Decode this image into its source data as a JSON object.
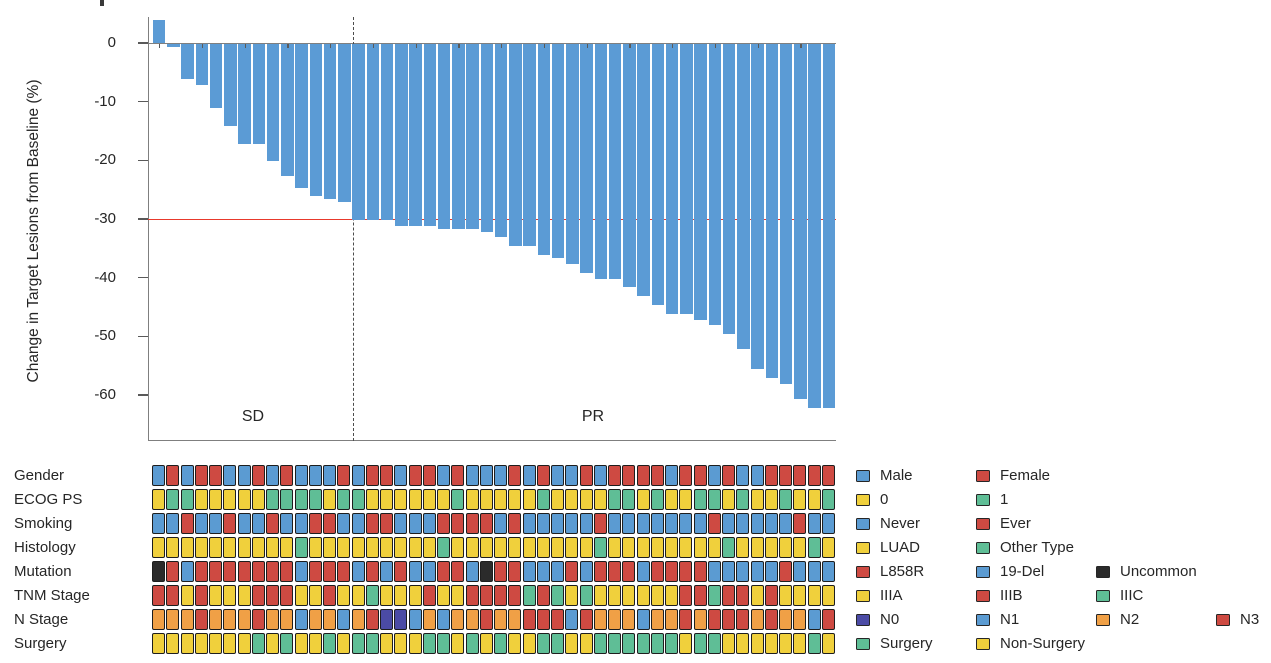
{
  "chart_data": {
    "type": "bar",
    "subtype": "waterfall",
    "title": "",
    "xlabel": "",
    "ylabel": "Change in Target Lesions from Baseline (%)",
    "yticks": [
      0,
      -10,
      -20,
      -30,
      -40,
      -50,
      -60
    ],
    "ylim": [
      -68,
      4.8
    ],
    "grid": false,
    "bar_color": "#5B9BD5",
    "threshold_line": {
      "value": -30,
      "color": "#E8392C"
    },
    "group_separator_after_bar": 14,
    "groups": [
      {
        "label": "SD",
        "bar_count": 14
      },
      {
        "label": "PR",
        "bar_count": 34
      }
    ],
    "zero_line_tick_interval": 3,
    "values": [
      4,
      -0.5,
      -6,
      -7,
      -11,
      -14,
      -17,
      -17,
      -20,
      -22.5,
      -24.5,
      -26,
      -26.5,
      -27,
      -30,
      -30,
      -30,
      -31,
      -31,
      -31,
      -31.5,
      -31.5,
      -31.5,
      -32,
      -33,
      -34.5,
      -34.5,
      -36,
      -36.5,
      -37.5,
      -39,
      -40,
      -40,
      -41.5,
      -43,
      -44.5,
      -46,
      -46,
      -47,
      -48,
      -49.5,
      -52,
      -55.5,
      -57,
      -58,
      -60.5,
      -62,
      -62
    ]
  },
  "oncoprint": {
    "palette": {
      "B": "#5B9BD2",
      "R": "#CE4A42",
      "Y": "#F0D03C",
      "G": "#5FBE96",
      "O": "#F0A046",
      "P": "#4B4BA5",
      "K": "#2B2B2B"
    },
    "rows": [
      {
        "label": "Gender",
        "cells": [
          "B",
          "R",
          "B",
          "R",
          "R",
          "B",
          "B",
          "R",
          "B",
          "R",
          "B",
          "B",
          "B",
          "R",
          "B",
          "R",
          "R",
          "B",
          "R",
          "R",
          "B",
          "R",
          "B",
          "B",
          "B",
          "R",
          "B",
          "R",
          "B",
          "B",
          "R",
          "B",
          "R",
          "R",
          "R",
          "R",
          "B",
          "R",
          "R",
          "B",
          "R",
          "B",
          "B",
          "R",
          "R",
          "R",
          "R",
          "R"
        ]
      },
      {
        "label": "ECOG PS",
        "cells": [
          "Y",
          "G",
          "G",
          "Y",
          "Y",
          "Y",
          "Y",
          "Y",
          "G",
          "G",
          "G",
          "G",
          "Y",
          "G",
          "G",
          "Y",
          "Y",
          "Y",
          "Y",
          "Y",
          "Y",
          "G",
          "Y",
          "Y",
          "Y",
          "Y",
          "Y",
          "G",
          "Y",
          "Y",
          "Y",
          "Y",
          "G",
          "G",
          "Y",
          "G",
          "Y",
          "Y",
          "G",
          "G",
          "Y",
          "G",
          "Y",
          "Y",
          "G",
          "Y",
          "Y",
          "G"
        ]
      },
      {
        "label": "Smoking",
        "cells": [
          "B",
          "B",
          "R",
          "B",
          "B",
          "R",
          "B",
          "B",
          "R",
          "B",
          "B",
          "R",
          "R",
          "B",
          "B",
          "R",
          "R",
          "B",
          "B",
          "B",
          "R",
          "R",
          "R",
          "R",
          "B",
          "R",
          "B",
          "B",
          "B",
          "B",
          "B",
          "R",
          "B",
          "B",
          "B",
          "B",
          "B",
          "B",
          "B",
          "R",
          "B",
          "B",
          "B",
          "B",
          "B",
          "R",
          "B",
          "B"
        ]
      },
      {
        "label": "Histology",
        "cells": [
          "Y",
          "Y",
          "Y",
          "Y",
          "Y",
          "Y",
          "Y",
          "Y",
          "Y",
          "Y",
          "G",
          "Y",
          "Y",
          "Y",
          "Y",
          "Y",
          "Y",
          "Y",
          "Y",
          "Y",
          "G",
          "Y",
          "Y",
          "Y",
          "Y",
          "Y",
          "Y",
          "Y",
          "Y",
          "Y",
          "Y",
          "G",
          "Y",
          "Y",
          "Y",
          "Y",
          "Y",
          "Y",
          "Y",
          "Y",
          "G",
          "Y",
          "Y",
          "Y",
          "Y",
          "Y",
          "G",
          "Y"
        ]
      },
      {
        "label": "Mutation",
        "cells": [
          "K",
          "R",
          "B",
          "R",
          "R",
          "R",
          "R",
          "R",
          "R",
          "R",
          "B",
          "R",
          "R",
          "R",
          "B",
          "R",
          "B",
          "R",
          "B",
          "B",
          "R",
          "R",
          "B",
          "K",
          "R",
          "R",
          "B",
          "B",
          "B",
          "R",
          "B",
          "R",
          "R",
          "R",
          "B",
          "R",
          "R",
          "R",
          "R",
          "B",
          "B",
          "B",
          "B",
          "B",
          "R",
          "B",
          "B",
          "B"
        ]
      },
      {
        "label": "TNM Stage",
        "cells": [
          "R",
          "R",
          "Y",
          "R",
          "Y",
          "Y",
          "Y",
          "R",
          "R",
          "R",
          "Y",
          "Y",
          "R",
          "Y",
          "Y",
          "G",
          "Y",
          "Y",
          "Y",
          "R",
          "Y",
          "Y",
          "R",
          "R",
          "R",
          "R",
          "G",
          "R",
          "G",
          "Y",
          "G",
          "Y",
          "Y",
          "Y",
          "Y",
          "Y",
          "Y",
          "R",
          "R",
          "G",
          "R",
          "R",
          "Y",
          "R",
          "Y",
          "Y",
          "Y",
          "Y"
        ]
      },
      {
        "label": "N Stage",
        "cells": [
          "O",
          "O",
          "O",
          "R",
          "O",
          "O",
          "O",
          "R",
          "O",
          "O",
          "B",
          "O",
          "O",
          "B",
          "O",
          "R",
          "P",
          "P",
          "B",
          "O",
          "B",
          "O",
          "O",
          "R",
          "O",
          "O",
          "R",
          "R",
          "R",
          "B",
          "R",
          "O",
          "O",
          "O",
          "B",
          "O",
          "O",
          "R",
          "O",
          "R",
          "R",
          "R",
          "O",
          "R",
          "O",
          "O",
          "B",
          "R"
        ]
      },
      {
        "label": "Surgery",
        "cells": [
          "Y",
          "Y",
          "Y",
          "Y",
          "Y",
          "Y",
          "Y",
          "G",
          "Y",
          "G",
          "Y",
          "Y",
          "G",
          "Y",
          "G",
          "G",
          "Y",
          "Y",
          "Y",
          "G",
          "G",
          "Y",
          "G",
          "Y",
          "G",
          "Y",
          "Y",
          "G",
          "G",
          "Y",
          "Y",
          "G",
          "G",
          "G",
          "G",
          "G",
          "G",
          "Y",
          "G",
          "G",
          "Y",
          "Y",
          "Y",
          "Y",
          "Y",
          "Y",
          "G",
          "Y"
        ]
      }
    ]
  },
  "legend": {
    "items": [
      {
        "row": 0,
        "col": 0,
        "key": "B",
        "label": "Male"
      },
      {
        "row": 0,
        "col": 1,
        "key": "R",
        "label": "Female"
      },
      {
        "row": 1,
        "col": 0,
        "key": "Y",
        "label": "0"
      },
      {
        "row": 1,
        "col": 1,
        "key": "G",
        "label": "1"
      },
      {
        "row": 2,
        "col": 0,
        "key": "B",
        "label": "Never"
      },
      {
        "row": 2,
        "col": 1,
        "key": "R",
        "label": "Ever"
      },
      {
        "row": 3,
        "col": 0,
        "key": "Y",
        "label": "LUAD"
      },
      {
        "row": 3,
        "col": 1,
        "key": "G",
        "label": "Other Type"
      },
      {
        "row": 4,
        "col": 0,
        "key": "R",
        "label": "L858R"
      },
      {
        "row": 4,
        "col": 1,
        "key": "B",
        "label": "19-Del"
      },
      {
        "row": 4,
        "col": 2,
        "key": "K",
        "label": "Uncommon"
      },
      {
        "row": 5,
        "col": 0,
        "key": "Y",
        "label": "IIIA"
      },
      {
        "row": 5,
        "col": 1,
        "key": "R",
        "label": "IIIB"
      },
      {
        "row": 5,
        "col": 2,
        "key": "G",
        "label": "IIIC"
      },
      {
        "row": 6,
        "col": 0,
        "key": "P",
        "label": "N0"
      },
      {
        "row": 6,
        "col": 1,
        "key": "B",
        "label": "N1"
      },
      {
        "row": 6,
        "col": 2,
        "key": "O",
        "label": "N2"
      },
      {
        "row": 6,
        "col": 3,
        "key": "R",
        "label": "N3"
      },
      {
        "row": 7,
        "col": 0,
        "key": "G",
        "label": "Surgery"
      },
      {
        "row": 7,
        "col": 1,
        "key": "Y",
        "label": "Non-Surgery"
      }
    ]
  }
}
